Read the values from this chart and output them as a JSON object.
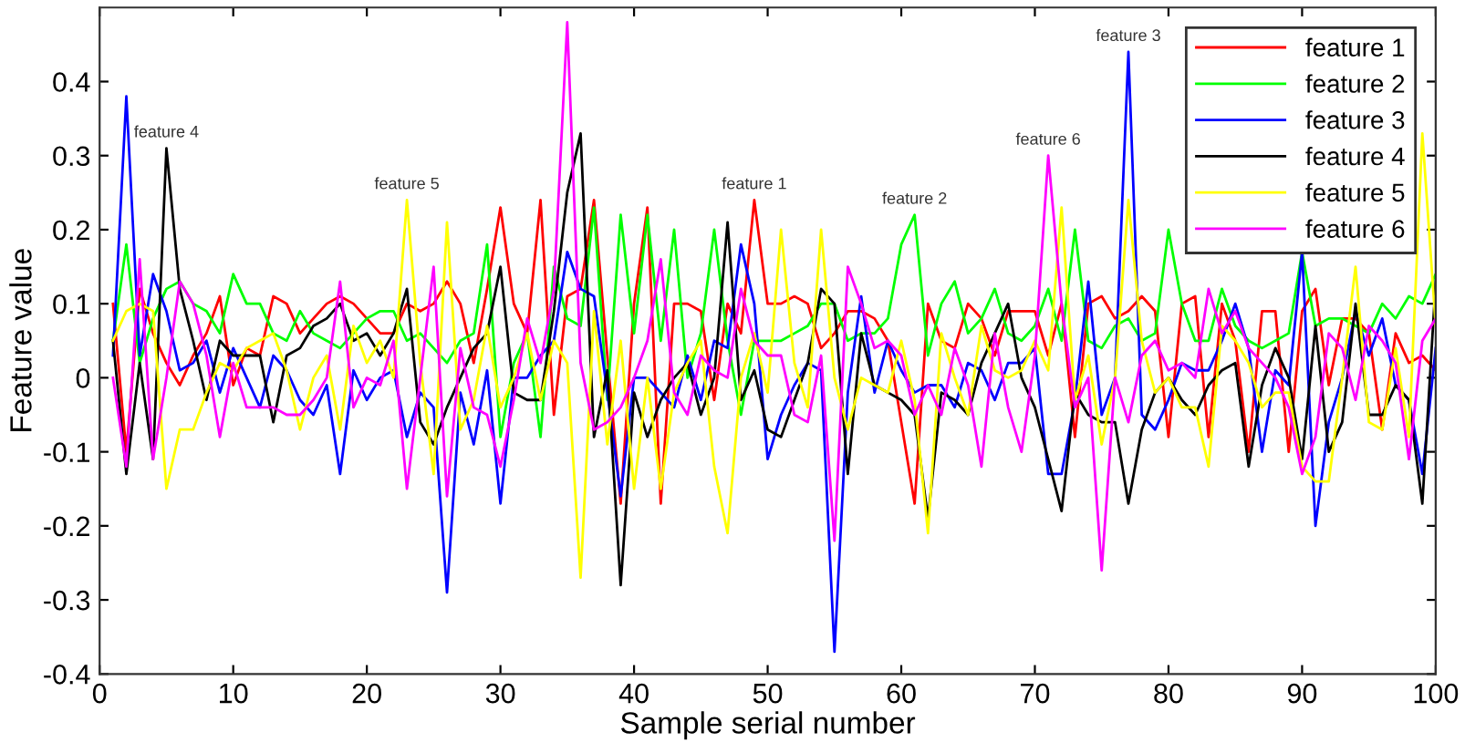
{
  "chart_data": {
    "type": "line",
    "xlabel": "Sample serial number",
    "ylabel": "Feature value",
    "x": [
      1,
      2,
      3,
      4,
      5,
      6,
      7,
      8,
      9,
      10,
      11,
      12,
      13,
      14,
      15,
      16,
      17,
      18,
      19,
      20,
      21,
      22,
      23,
      24,
      25,
      26,
      27,
      28,
      29,
      30,
      31,
      32,
      33,
      34,
      35,
      36,
      37,
      38,
      39,
      40,
      41,
      42,
      43,
      44,
      45,
      46,
      47,
      48,
      49,
      50,
      51,
      52,
      53,
      54,
      55,
      56,
      57,
      58,
      59,
      60,
      61,
      62,
      63,
      64,
      65,
      66,
      67,
      68,
      69,
      70,
      71,
      72,
      73,
      74,
      75,
      76,
      77,
      78,
      79,
      80,
      81,
      82,
      83,
      84,
      85,
      86,
      87,
      88,
      89,
      90,
      91,
      92,
      93,
      94,
      95,
      96,
      97,
      98,
      99,
      100
    ],
    "series": [
      {
        "name": "feature 1",
        "color": "#ff0000",
        "values": [
          0.1,
          -0.1,
          0.12,
          0.06,
          0.02,
          -0.01,
          0.03,
          0.06,
          0.11,
          -0.01,
          0.04,
          0.03,
          0.11,
          0.1,
          0.06,
          0.08,
          0.1,
          0.11,
          0.1,
          0.08,
          0.06,
          0.06,
          0.1,
          0.09,
          0.1,
          0.13,
          0.1,
          0.02,
          0.12,
          0.23,
          0.1,
          0.06,
          0.24,
          -0.05,
          0.11,
          0.12,
          0.24,
          0.03,
          -0.17,
          0.1,
          0.23,
          -0.17,
          0.1,
          0.1,
          0.09,
          -0.03,
          0.1,
          0.06,
          0.24,
          0.1,
          0.1,
          0.11,
          0.1,
          0.04,
          0.06,
          0.09,
          0.09,
          0.08,
          0.05,
          -0.06,
          -0.17,
          0.1,
          0.05,
          0.04,
          0.1,
          0.08,
          0.03,
          0.09,
          0.09,
          0.09,
          0.03,
          0.1,
          -0.08,
          0.1,
          0.11,
          0.08,
          0.09,
          0.11,
          0.09,
          -0.08,
          0.1,
          0.11,
          -0.08,
          0.1,
          0.05,
          -0.1,
          0.09,
          0.09,
          -0.1,
          0.09,
          0.12,
          -0.01,
          0.08,
          0.08,
          0.06,
          -0.07,
          0.06,
          0.02,
          0.03,
          0.01
        ]
      },
      {
        "name": "feature 2",
        "color": "#00ff00",
        "values": [
          0.05,
          0.18,
          0.02,
          0.08,
          0.12,
          0.13,
          0.1,
          0.09,
          0.06,
          0.14,
          0.1,
          0.1,
          0.06,
          0.05,
          0.09,
          0.06,
          0.05,
          0.04,
          0.06,
          0.08,
          0.09,
          0.09,
          0.05,
          0.06,
          0.04,
          0.02,
          0.05,
          0.06,
          0.18,
          -0.08,
          0.02,
          0.06,
          -0.08,
          0.15,
          0.08,
          0.07,
          0.23,
          -0.03,
          0.22,
          0.06,
          0.22,
          0.05,
          0.2,
          0.0,
          0.06,
          0.2,
          0.05,
          -0.05,
          0.05,
          0.05,
          0.05,
          0.06,
          0.07,
          0.1,
          0.1,
          0.05,
          0.06,
          0.06,
          0.08,
          0.18,
          0.22,
          0.03,
          0.1,
          0.13,
          0.06,
          0.08,
          0.12,
          0.06,
          0.05,
          0.07,
          0.12,
          0.05,
          0.2,
          0.05,
          0.04,
          0.07,
          0.08,
          0.05,
          0.06,
          0.2,
          0.1,
          0.05,
          0.05,
          0.12,
          0.07,
          0.05,
          0.04,
          0.05,
          0.06,
          0.17,
          0.07,
          0.08,
          0.08,
          0.07,
          0.06,
          0.1,
          0.08,
          0.11,
          0.1,
          0.14
        ]
      },
      {
        "name": "feature 3",
        "color": "#0000ff",
        "values": [
          0.03,
          0.38,
          0.03,
          0.14,
          0.09,
          0.01,
          0.02,
          0.05,
          -0.02,
          0.04,
          0.0,
          -0.04,
          0.03,
          0.01,
          -0.03,
          -0.05,
          -0.01,
          -0.13,
          0.01,
          -0.03,
          0.0,
          0.01,
          -0.08,
          -0.02,
          -0.04,
          -0.29,
          -0.02,
          -0.09,
          0.01,
          -0.17,
          0.0,
          0.0,
          0.03,
          0.05,
          0.17,
          0.12,
          0.11,
          -0.02,
          -0.16,
          0.0,
          0.0,
          -0.02,
          -0.04,
          0.03,
          -0.03,
          0.05,
          0.04,
          0.18,
          0.1,
          -0.11,
          -0.05,
          -0.01,
          0.02,
          0.01,
          -0.37,
          -0.02,
          0.11,
          -0.02,
          0.05,
          0.01,
          -0.02,
          -0.01,
          -0.01,
          -0.04,
          0.02,
          0.01,
          -0.03,
          0.02,
          0.02,
          0.04,
          -0.13,
          -0.13,
          -0.03,
          0.13,
          -0.05,
          0.0,
          0.44,
          -0.05,
          -0.07,
          -0.03,
          0.02,
          0.01,
          0.01,
          0.05,
          0.1,
          0.04,
          -0.1,
          0.01,
          -0.01,
          0.17,
          -0.2,
          -0.06,
          0.0,
          0.09,
          0.03,
          0.08,
          -0.01,
          -0.03,
          -0.13,
          0.04
        ]
      },
      {
        "name": "feature 4",
        "color": "#000000",
        "values": [
          0.05,
          -0.13,
          0.02,
          -0.11,
          0.31,
          0.12,
          0.05,
          -0.03,
          0.05,
          0.03,
          0.03,
          0.03,
          -0.06,
          0.03,
          0.04,
          0.07,
          0.08,
          0.1,
          0.05,
          0.06,
          0.03,
          0.06,
          0.12,
          -0.06,
          -0.09,
          -0.04,
          0.0,
          0.04,
          0.06,
          0.15,
          -0.02,
          -0.03,
          -0.03,
          0.09,
          0.25,
          0.33,
          -0.08,
          0.01,
          -0.28,
          -0.02,
          -0.08,
          -0.03,
          0.0,
          0.02,
          -0.05,
          0.0,
          0.21,
          -0.03,
          0.01,
          -0.07,
          -0.08,
          -0.03,
          0.02,
          0.12,
          0.1,
          -0.13,
          0.06,
          -0.01,
          -0.02,
          -0.03,
          -0.05,
          -0.19,
          -0.02,
          -0.03,
          -0.05,
          0.02,
          0.06,
          0.1,
          0.0,
          -0.04,
          -0.11,
          -0.18,
          -0.02,
          -0.05,
          -0.06,
          -0.06,
          -0.17,
          -0.07,
          -0.02,
          0.0,
          -0.03,
          -0.05,
          -0.01,
          0.01,
          0.02,
          -0.12,
          -0.01,
          0.04,
          0.0,
          -0.11,
          0.07,
          -0.1,
          -0.06,
          0.1,
          -0.05,
          -0.05,
          -0.01,
          -0.03,
          -0.17,
          0.13
        ]
      },
      {
        "name": "feature 5",
        "color": "#ffff00",
        "values": [
          0.05,
          0.09,
          0.1,
          0.09,
          -0.15,
          -0.07,
          -0.07,
          -0.02,
          0.02,
          0.01,
          0.04,
          0.05,
          0.06,
          0.01,
          -0.07,
          0.0,
          0.03,
          -0.07,
          0.07,
          0.02,
          0.05,
          0.0,
          0.24,
          0.02,
          -0.13,
          0.21,
          -0.07,
          -0.03,
          0.07,
          -0.04,
          0.0,
          0.06,
          -0.03,
          0.05,
          0.02,
          -0.27,
          0.09,
          -0.09,
          0.05,
          -0.15,
          0.0,
          -0.15,
          -0.02,
          0.02,
          0.05,
          -0.12,
          -0.21,
          0.0,
          0.06,
          -0.02,
          0.2,
          0.02,
          -0.04,
          0.2,
          0.0,
          -0.07,
          0.0,
          -0.01,
          -0.02,
          0.05,
          -0.03,
          -0.21,
          0.06,
          0.0,
          -0.05,
          0.07,
          0.01,
          0.0,
          0.01,
          0.05,
          0.01,
          0.23,
          -0.03,
          0.03,
          -0.09,
          0.0,
          0.24,
          0.05,
          -0.02,
          0.0,
          -0.04,
          -0.04,
          -0.12,
          0.07,
          0.05,
          0.02,
          -0.04,
          -0.02,
          -0.02,
          -0.12,
          -0.14,
          -0.14,
          0.0,
          0.15,
          -0.06,
          -0.07,
          0.04,
          -0.08,
          0.33,
          0.07
        ]
      },
      {
        "name": "feature 6",
        "color": "#ff00ff",
        "values": [
          0.0,
          -0.12,
          0.16,
          -0.11,
          0.0,
          0.13,
          0.1,
          0.03,
          -0.08,
          0.02,
          -0.04,
          -0.04,
          -0.04,
          -0.05,
          -0.05,
          -0.03,
          0.0,
          0.13,
          -0.04,
          0.0,
          -0.01,
          0.05,
          -0.15,
          0.0,
          0.15,
          -0.16,
          0.04,
          -0.04,
          -0.05,
          -0.12,
          -0.03,
          0.08,
          0.02,
          0.12,
          0.48,
          0.02,
          -0.07,
          -0.06,
          -0.04,
          0.0,
          0.05,
          0.16,
          -0.02,
          -0.05,
          0.03,
          0.01,
          0.0,
          0.12,
          0.05,
          0.03,
          0.03,
          -0.05,
          -0.06,
          0.03,
          -0.22,
          0.15,
          0.1,
          0.04,
          0.05,
          0.03,
          -0.05,
          -0.01,
          -0.05,
          0.04,
          -0.01,
          -0.12,
          0.06,
          -0.04,
          -0.1,
          0.03,
          0.3,
          0.1,
          -0.04,
          0.0,
          -0.26,
          0.0,
          -0.06,
          0.03,
          0.05,
          0.01,
          0.02,
          0.0,
          0.12,
          0.06,
          0.09,
          0.04,
          0.02,
          0.0,
          -0.04,
          -0.13,
          -0.08,
          0.06,
          0.04,
          -0.03,
          0.07,
          0.05,
          0.02,
          -0.11,
          0.05,
          0.08
        ]
      }
    ],
    "annotations": [
      {
        "text": "feature 4",
        "x": 5,
        "y": 0.31
      },
      {
        "text": "feature 5",
        "x": 23,
        "y": 0.24
      },
      {
        "text": "feature 1",
        "x": 49,
        "y": 0.24
      },
      {
        "text": "feature 2",
        "x": 61,
        "y": 0.22
      },
      {
        "text": "feature 6",
        "x": 71,
        "y": 0.3
      },
      {
        "text": "feature 3",
        "x": 77,
        "y": 0.44
      }
    ],
    "xlim": [
      0,
      100
    ],
    "xticks": [
      0,
      10,
      20,
      30,
      40,
      50,
      60,
      70,
      80,
      90,
      100
    ],
    "ylim": [
      -0.4,
      0.5
    ],
    "yticks": [
      -0.4,
      -0.3,
      -0.2,
      -0.1,
      0,
      0.1,
      0.2,
      0.3,
      0.4
    ],
    "grid": false,
    "legend": "top right",
    "marker": "none",
    "line_style": "solid"
  }
}
